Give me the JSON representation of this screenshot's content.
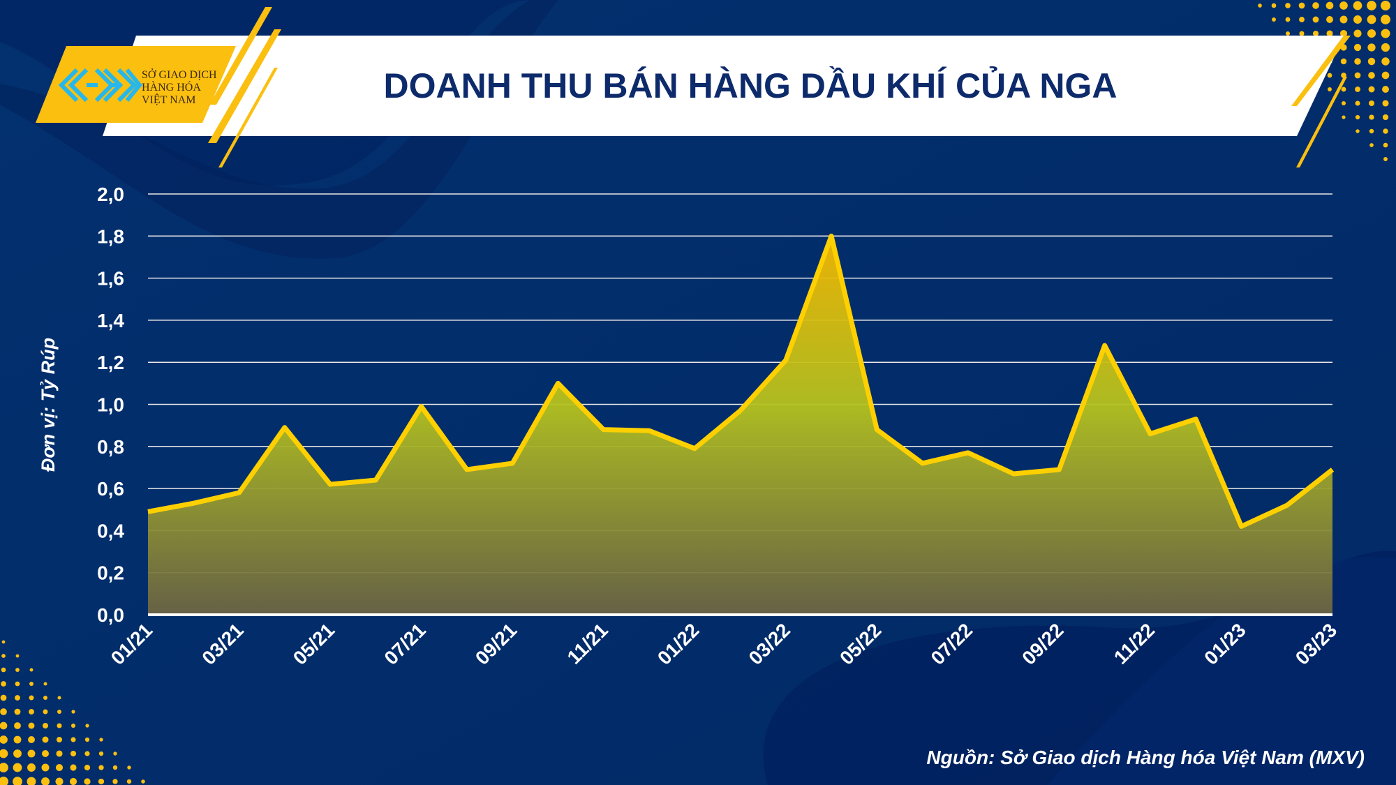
{
  "header": {
    "title": "DOANH THU BÁN HÀNG DẦU KHÍ CỦA NGA",
    "logo_text": [
      "SỞ GIAO DỊCH",
      "HÀNG HÓA",
      "VIỆT NAM"
    ]
  },
  "colors": {
    "background": "#002b6e",
    "line": "#ffd000",
    "title": "#0d2a6b",
    "accent": "#fbbf10"
  },
  "source": "Nguồn: Sở Giao dịch Hàng hóa Việt Nam (MXV)",
  "chart_data": {
    "type": "area",
    "title": "DOANH THU BÁN HÀNG DẦU KHÍ CỦA NGA",
    "ylabel": "Đơn vị: Tỷ Rúp",
    "xlabel": "",
    "ylim": [
      0,
      2.0
    ],
    "yticks": [
      "0,0",
      "0,2",
      "0,4",
      "0,6",
      "0,8",
      "1,0",
      "1,2",
      "1,4",
      "1,6",
      "1,8",
      "2,0"
    ],
    "xtick_labels": [
      "01/21",
      "03/21",
      "05/21",
      "07/21",
      "09/21",
      "11/21",
      "01/22",
      "03/22",
      "05/22",
      "07/22",
      "09/22",
      "11/22",
      "01/23",
      "03/23"
    ],
    "grid": true,
    "x": [
      "01/21",
      "02/21",
      "03/21",
      "04/21",
      "05/21",
      "06/21",
      "07/21",
      "08/21",
      "09/21",
      "10/21",
      "11/21",
      "12/21",
      "01/22",
      "02/22",
      "03/22",
      "04/22",
      "05/22",
      "06/22",
      "07/22",
      "08/22",
      "09/22",
      "10/22",
      "11/22",
      "12/22",
      "01/23",
      "02/23",
      "03/23"
    ],
    "values": [
      0.49,
      0.53,
      0.58,
      0.89,
      0.62,
      0.64,
      0.99,
      0.69,
      0.72,
      1.1,
      0.88,
      0.875,
      0.79,
      0.97,
      1.21,
      1.8,
      0.88,
      0.72,
      0.77,
      0.67,
      0.69,
      1.28,
      0.86,
      0.93,
      0.42,
      0.52,
      0.69
    ]
  }
}
